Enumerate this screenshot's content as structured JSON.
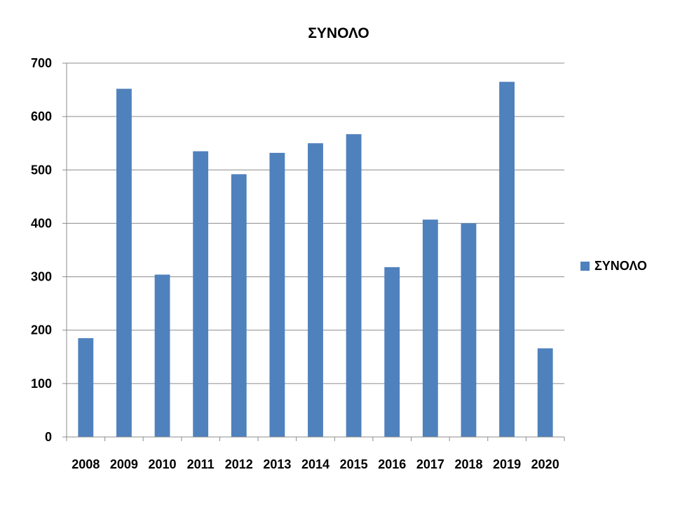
{
  "chart_data": {
    "type": "bar",
    "title": "ΣΥΝΟΛΟ",
    "xlabel": "",
    "ylabel": "",
    "categories": [
      "2008",
      "2009",
      "2010",
      "2011",
      "2012",
      "2013",
      "2014",
      "2015",
      "2016",
      "2017",
      "2018",
      "2019",
      "2020"
    ],
    "series": [
      {
        "name": "ΣΥΝΟΛΟ",
        "values": [
          185,
          652,
          304,
          535,
          492,
          532,
          550,
          567,
          318,
          407,
          400,
          665,
          166
        ],
        "color": "#4f81bd"
      }
    ],
    "ylim": [
      0,
      700
    ],
    "yticks": [
      0,
      100,
      200,
      300,
      400,
      500,
      600,
      700
    ],
    "grid": true,
    "legend": "right"
  }
}
